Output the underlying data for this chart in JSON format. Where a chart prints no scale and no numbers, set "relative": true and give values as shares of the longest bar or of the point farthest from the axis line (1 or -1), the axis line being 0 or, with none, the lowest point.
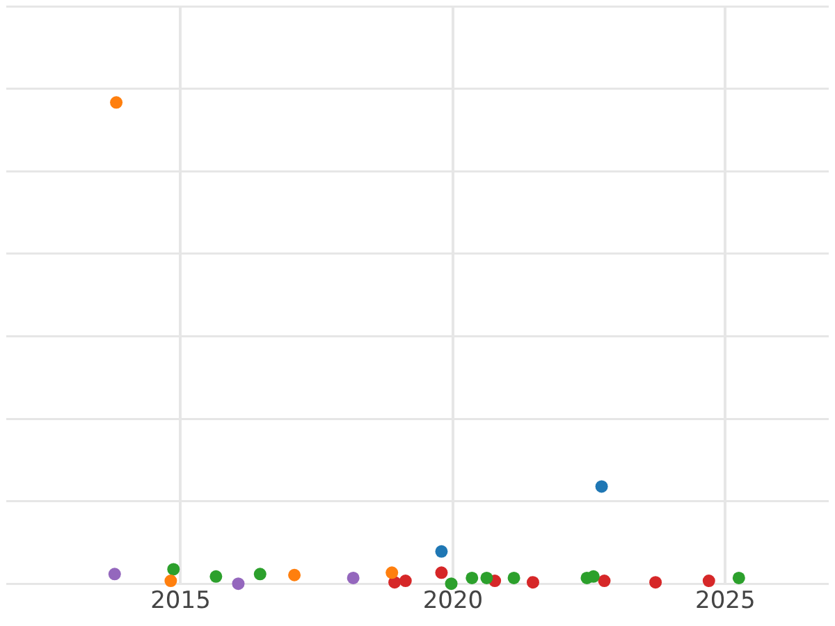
{
  "chart_data": {
    "type": "scatter",
    "relative": true,
    "xlim": [
      2011.8,
      2026.9
    ],
    "xticks": [
      2015,
      2020,
      2025
    ],
    "grid": true,
    "legend": false,
    "marker": "circle",
    "tick_labels": "x",
    "series": [
      {
        "color": "#ff7f0e",
        "x": [
          2013.82,
          2014.82,
          2017.09,
          2018.88
        ],
        "values": [
          1.0,
          0.006,
          0.018,
          0.023
        ]
      },
      {
        "color": "#9467bd",
        "x": [
          2013.79,
          2016.06,
          2018.17
        ],
        "values": [
          0.02,
          0,
          0.012
        ]
      },
      {
        "color": "#2ca02c",
        "x": [
          2014.87,
          2015.65,
          2016.46,
          2019.97,
          2020.35,
          2020.62,
          2021.12,
          2022.46,
          2022.58,
          2025.25
        ],
        "values": [
          0.03,
          0.015,
          0.02,
          0,
          0.012,
          0.012,
          0.012,
          0.012,
          0.015,
          0.012
        ]
      },
      {
        "color": "#d62728",
        "x": [
          2018.93,
          2019.13,
          2019.79,
          2020.77,
          2021.47,
          2022.78,
          2023.72,
          2024.7
        ],
        "values": [
          0.003,
          0.006,
          0.023,
          0.006,
          0.003,
          0.006,
          0.003,
          0.006
        ]
      },
      {
        "color": "#1f77b4",
        "x": [
          2019.79,
          2022.73
        ],
        "values": [
          0.067,
          0.202
        ]
      }
    ]
  }
}
